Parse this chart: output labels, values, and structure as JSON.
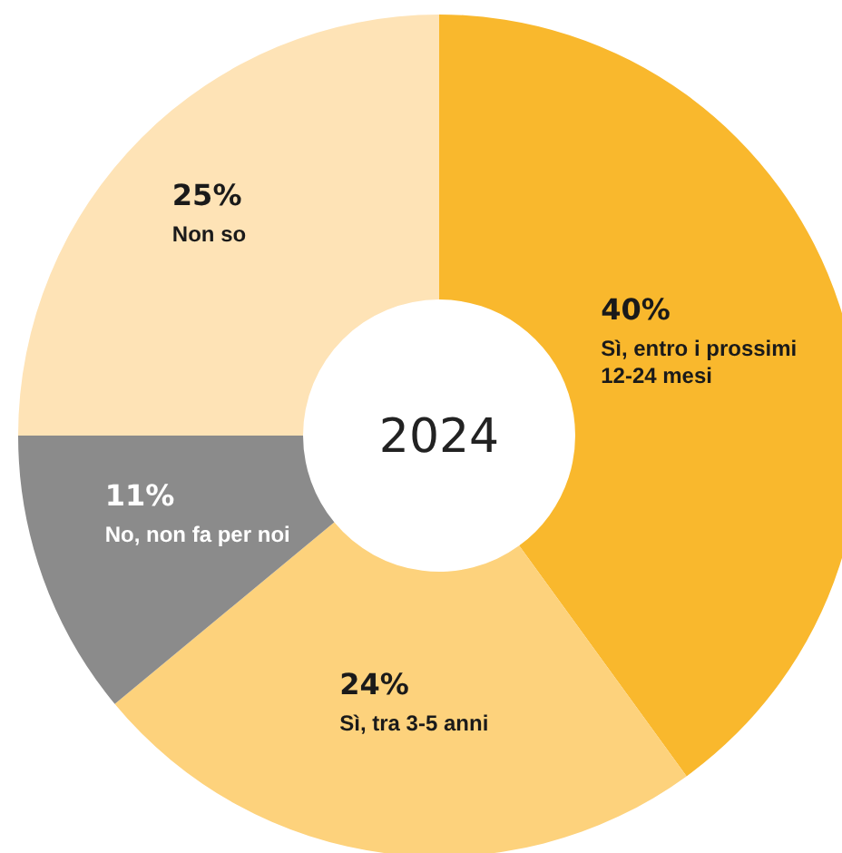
{
  "chart_data": {
    "type": "donut",
    "title": "2024",
    "categories": [
      "Sì, entro i prossimi 12-24 mesi",
      "Sì, tra 3-5 anni",
      "No, non fa per noi",
      "Non so"
    ],
    "values": [
      40,
      24,
      11,
      25
    ],
    "colors": [
      "#f9b82d",
      "#fdd27c",
      "#8b8b8b",
      "#fee3b6"
    ],
    "value_labels": [
      "40%",
      "24%",
      "11%",
      "25%"
    ]
  }
}
